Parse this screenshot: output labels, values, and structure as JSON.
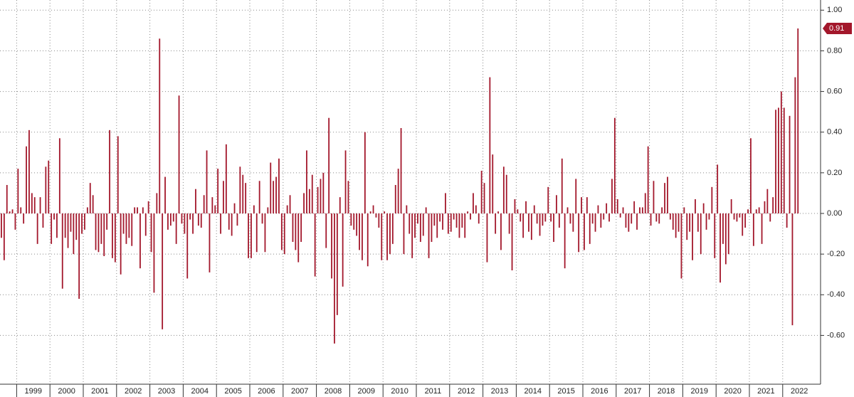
{
  "chart_data": {
    "type": "bar",
    "color": "#a3172b",
    "grid": true,
    "ylim": [
      -0.84,
      1.05
    ],
    "yticks": [
      {
        "value": -0.6,
        "label": "-0.60"
      },
      {
        "value": -0.4,
        "label": "-0.40"
      },
      {
        "value": -0.2,
        "label": "-0.20"
      },
      {
        "value": 0,
        "label": "0.00"
      },
      {
        "value": 0.2,
        "label": "0.20"
      },
      {
        "value": 0.4,
        "label": "0.40"
      },
      {
        "value": 0.6,
        "label": "0.60"
      },
      {
        "value": 0.8,
        "label": "0.80"
      },
      {
        "value": 1,
        "label": "1.00"
      }
    ],
    "categories": [
      null,
      null,
      null,
      null,
      null,
      null,
      null,
      null,
      null,
      null,
      null,
      "1999",
      null,
      null,
      null,
      null,
      null,
      null,
      null,
      null,
      null,
      null,
      null,
      "2000",
      null,
      null,
      null,
      null,
      null,
      null,
      null,
      null,
      null,
      null,
      null,
      "2001",
      null,
      null,
      null,
      null,
      null,
      null,
      null,
      null,
      null,
      null,
      null,
      "2002",
      null,
      null,
      null,
      null,
      null,
      null,
      null,
      null,
      null,
      null,
      null,
      "2003",
      null,
      null,
      null,
      null,
      null,
      null,
      null,
      null,
      null,
      null,
      null,
      "2004",
      null,
      null,
      null,
      null,
      null,
      null,
      null,
      null,
      null,
      null,
      null,
      "2005",
      null,
      null,
      null,
      null,
      null,
      null,
      null,
      null,
      null,
      null,
      null,
      "2006",
      null,
      null,
      null,
      null,
      null,
      null,
      null,
      null,
      null,
      null,
      null,
      "2007",
      null,
      null,
      null,
      null,
      null,
      null,
      null,
      null,
      null,
      null,
      null,
      "2008",
      null,
      null,
      null,
      null,
      null,
      null,
      null,
      null,
      null,
      null,
      null,
      "2009",
      null,
      null,
      null,
      null,
      null,
      null,
      null,
      null,
      null,
      null,
      null,
      "2010",
      null,
      null,
      null,
      null,
      null,
      null,
      null,
      null,
      null,
      null,
      null,
      "2011",
      null,
      null,
      null,
      null,
      null,
      null,
      null,
      null,
      null,
      null,
      null,
      "2012",
      null,
      null,
      null,
      null,
      null,
      null,
      null,
      null,
      null,
      null,
      null,
      "2013",
      null,
      null,
      null,
      null,
      null,
      null,
      null,
      null,
      null,
      null,
      null,
      "2014",
      null,
      null,
      null,
      null,
      null,
      null,
      null,
      null,
      null,
      null,
      null,
      "2015",
      null,
      null,
      null,
      null,
      null,
      null,
      null,
      null,
      null,
      null,
      null,
      "2016",
      null,
      null,
      null,
      null,
      null,
      null,
      null,
      null,
      null,
      null,
      null,
      "2017",
      null,
      null,
      null,
      null,
      null,
      null,
      null,
      null,
      null,
      null,
      null,
      "2018",
      null,
      null,
      null,
      null,
      null,
      null,
      null,
      null,
      null,
      null,
      null,
      "2019",
      null,
      null,
      null,
      null,
      null,
      null,
      null,
      null,
      null,
      null,
      null,
      "2020",
      null,
      null,
      null,
      null,
      null,
      null,
      null,
      null,
      null,
      null,
      null,
      "2021",
      null,
      null,
      null,
      null,
      null,
      null,
      null,
      null,
      null,
      null,
      null,
      "2022"
    ],
    "values": [
      -0.12,
      -0.23,
      0.14,
      0.01,
      0.02,
      -0.08,
      0.22,
      0.03,
      -0.05,
      0.33,
      0.41,
      0.1,
      0.08,
      -0.15,
      0.08,
      -0.07,
      0.23,
      0.26,
      -0.15,
      -0.03,
      -0.12,
      0.37,
      -0.37,
      -0.12,
      -0.17,
      -0.09,
      -0.2,
      -0.13,
      -0.42,
      -0.1,
      -0.08,
      0.03,
      0.15,
      0.09,
      -0.18,
      -0.19,
      -0.15,
      -0.21,
      -0.08,
      0.41,
      -0.22,
      -0.24,
      0.38,
      -0.3,
      -0.1,
      -0.15,
      -0.12,
      -0.16,
      0.03,
      0.03,
      -0.27,
      0.03,
      -0.11,
      0.06,
      -0.19,
      -0.39,
      0.1,
      0.86,
      -0.57,
      0.18,
      -0.08,
      -0.06,
      -0.04,
      -0.15,
      0.58,
      -0.05,
      -0.1,
      -0.32,
      -0.03,
      -0.1,
      0.12,
      -0.06,
      -0.07,
      0.09,
      0.31,
      -0.29,
      0.08,
      0.04,
      0.22,
      -0.1,
      0.16,
      0.34,
      -0.08,
      -0.11,
      0.05,
      -0.06,
      0.23,
      0.19,
      0.15,
      -0.22,
      -0.22,
      0.04,
      -0.19,
      0.16,
      -0.05,
      -0.19,
      0.03,
      0.25,
      0.16,
      0.18,
      0.27,
      -0.18,
      -0.2,
      0.04,
      0.09,
      -0.14,
      -0.18,
      -0.24,
      -0.14,
      0.1,
      0.31,
      0.12,
      0.19,
      -0.31,
      0.13,
      0.17,
      0.2,
      -0.17,
      0.47,
      -0.32,
      -0.64,
      -0.5,
      0.08,
      -0.36,
      0.31,
      0.16,
      -0.06,
      -0.08,
      -0.11,
      -0.18,
      -0.23,
      0.4,
      -0.26,
      0.01,
      0.04,
      -0.02,
      -0.07,
      -0.23,
      0.01,
      -0.23,
      -0.2,
      -0.15,
      0.14,
      0.22,
      0.42,
      -0.2,
      0.04,
      -0.1,
      -0.22,
      -0.12,
      -0.05,
      -0.14,
      -0.11,
      0.03,
      -0.22,
      -0.14,
      -0.06,
      -0.12,
      -0.04,
      -0.08,
      0.1,
      -0.1,
      -0.09,
      -0.03,
      -0.07,
      -0.12,
      -0.07,
      -0.12,
      0.01,
      -0.03,
      0.1,
      0.04,
      -0.05,
      0.21,
      0.15,
      -0.24,
      0.67,
      0.29,
      -0.1,
      0.01,
      -0.18,
      0.23,
      0.19,
      -0.1,
      -0.28,
      0.07,
      0.02,
      -0.04,
      -0.12,
      0.06,
      -0.09,
      -0.13,
      0.04,
      -0.05,
      -0.11,
      -0.06,
      -0.04,
      0.13,
      -0.04,
      -0.14,
      0.09,
      -0.07,
      0.27,
      -0.27,
      0.03,
      -0.05,
      -0.09,
      0.17,
      -0.19,
      0.08,
      -0.18,
      0.08,
      -0.15,
      -0.05,
      -0.09,
      0.04,
      -0.07,
      -0.03,
      0.05,
      -0.04,
      0.17,
      0.47,
      0.07,
      -0.02,
      0.03,
      -0.07,
      -0.09,
      -0.05,
      0.06,
      -0.08,
      0.03,
      0.03,
      0.1,
      0.33,
      -0.06,
      0.16,
      -0.04,
      -0.05,
      0.03,
      0.15,
      0.18,
      -0.03,
      -0.08,
      -0.12,
      -0.09,
      -0.32,
      0.03,
      -0.13,
      -0.09,
      -0.23,
      0.07,
      -0.09,
      -0.2,
      0.05,
      -0.08,
      -0.03,
      0.13,
      -0.22,
      0.24,
      -0.34,
      -0.15,
      -0.25,
      -0.2,
      0.07,
      -0.03,
      -0.04,
      -0.02,
      -0.11,
      -0.07,
      0.02,
      0.37,
      -0.16,
      0.02,
      0.03,
      -0.15,
      0.06,
      0.12,
      -0.04,
      0.08,
      0.51,
      0.52,
      0.6,
      0.52,
      -0.07,
      0.48,
      -0.55,
      0.67,
      0.91
    ],
    "value_labels": [
      null,
      null,
      null,
      null,
      null,
      null,
      null,
      null,
      null,
      null,
      null,
      null,
      null,
      null,
      null,
      null,
      null,
      null,
      null,
      null,
      null,
      null,
      null,
      null,
      null,
      null,
      null,
      null,
      null,
      null,
      null,
      null,
      null,
      null,
      null,
      null,
      null,
      null,
      null,
      null,
      null,
      null,
      null,
      null,
      null,
      null,
      null,
      null,
      null,
      null,
      null,
      null,
      null,
      null,
      null,
      null,
      null,
      null,
      null,
      null,
      null,
      null,
      null,
      null,
      null,
      null,
      null,
      null,
      null,
      null,
      null,
      null,
      null,
      null,
      null,
      null,
      null,
      null,
      null,
      null,
      null,
      null,
      null,
      null,
      null,
      null,
      null,
      null,
      null,
      null,
      null,
      null,
      null,
      null,
      null,
      null,
      null,
      null,
      null,
      null,
      null,
      null,
      null,
      null,
      null,
      null,
      null,
      null,
      null,
      null,
      null,
      null,
      null,
      null,
      null,
      null,
      null,
      null,
      null,
      null,
      null,
      null,
      null,
      null,
      null,
      null,
      null,
      null,
      null,
      null,
      null,
      null,
      null,
      null,
      null,
      null,
      null,
      null,
      null,
      null,
      null,
      null,
      null,
      null,
      null,
      null,
      null,
      null,
      null,
      null,
      null,
      null,
      null,
      null,
      null,
      null,
      null,
      null,
      null,
      null,
      null,
      null,
      null,
      null,
      null,
      null,
      null,
      null,
      null,
      null,
      null,
      null,
      null,
      null,
      null,
      null,
      null,
      null,
      null,
      null,
      null,
      null,
      null,
      null,
      null,
      null,
      null,
      null,
      null,
      null,
      null,
      null,
      null,
      null,
      null,
      null,
      null,
      null,
      null,
      null,
      null,
      null,
      null,
      null,
      null,
      null,
      null,
      null,
      null,
      null,
      null,
      null,
      null,
      null,
      null,
      null,
      null,
      null,
      null,
      null,
      null,
      null,
      null,
      null,
      null,
      null,
      null,
      null,
      null,
      null,
      null,
      null,
      null,
      null,
      null,
      null,
      null,
      null,
      null,
      null,
      null,
      null,
      null,
      null,
      null,
      null,
      null,
      null,
      null,
      null,
      null,
      null,
      null,
      null,
      null,
      null,
      null,
      null,
      null,
      null,
      null,
      null,
      null,
      null,
      null,
      null,
      null,
      null,
      null,
      null,
      null,
      null,
      null,
      null,
      null,
      null,
      null,
      null,
      null,
      null,
      null,
      null,
      null,
      null,
      null,
      null,
      null,
      "0.91"
    ]
  }
}
